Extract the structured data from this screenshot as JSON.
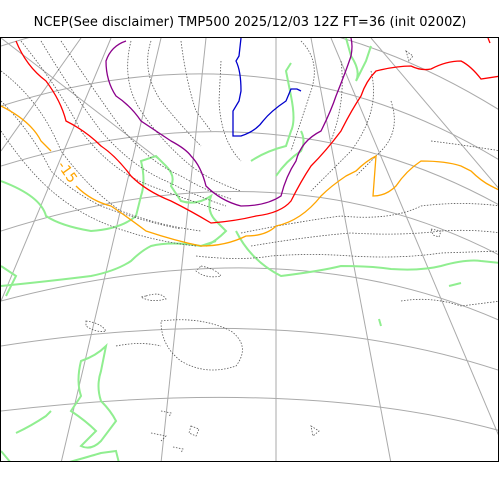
{
  "title": "NCEP(See disclaimer) TMP500 2025/12/03 12Z FT=36 (init 0200Z)",
  "map": {
    "projection": "polar stereographic",
    "field": "TMP500",
    "contour_label": "-15",
    "colors": {
      "coastline": "#90ee90",
      "graticule": "#aaaaaa",
      "isotherm_default": "#555555",
      "isotherm_-15": "#ffa500",
      "isotherm_red": "#ff0000",
      "isotherm_purple": "#8b008b",
      "isotherm_blue": "#0000cd"
    }
  }
}
